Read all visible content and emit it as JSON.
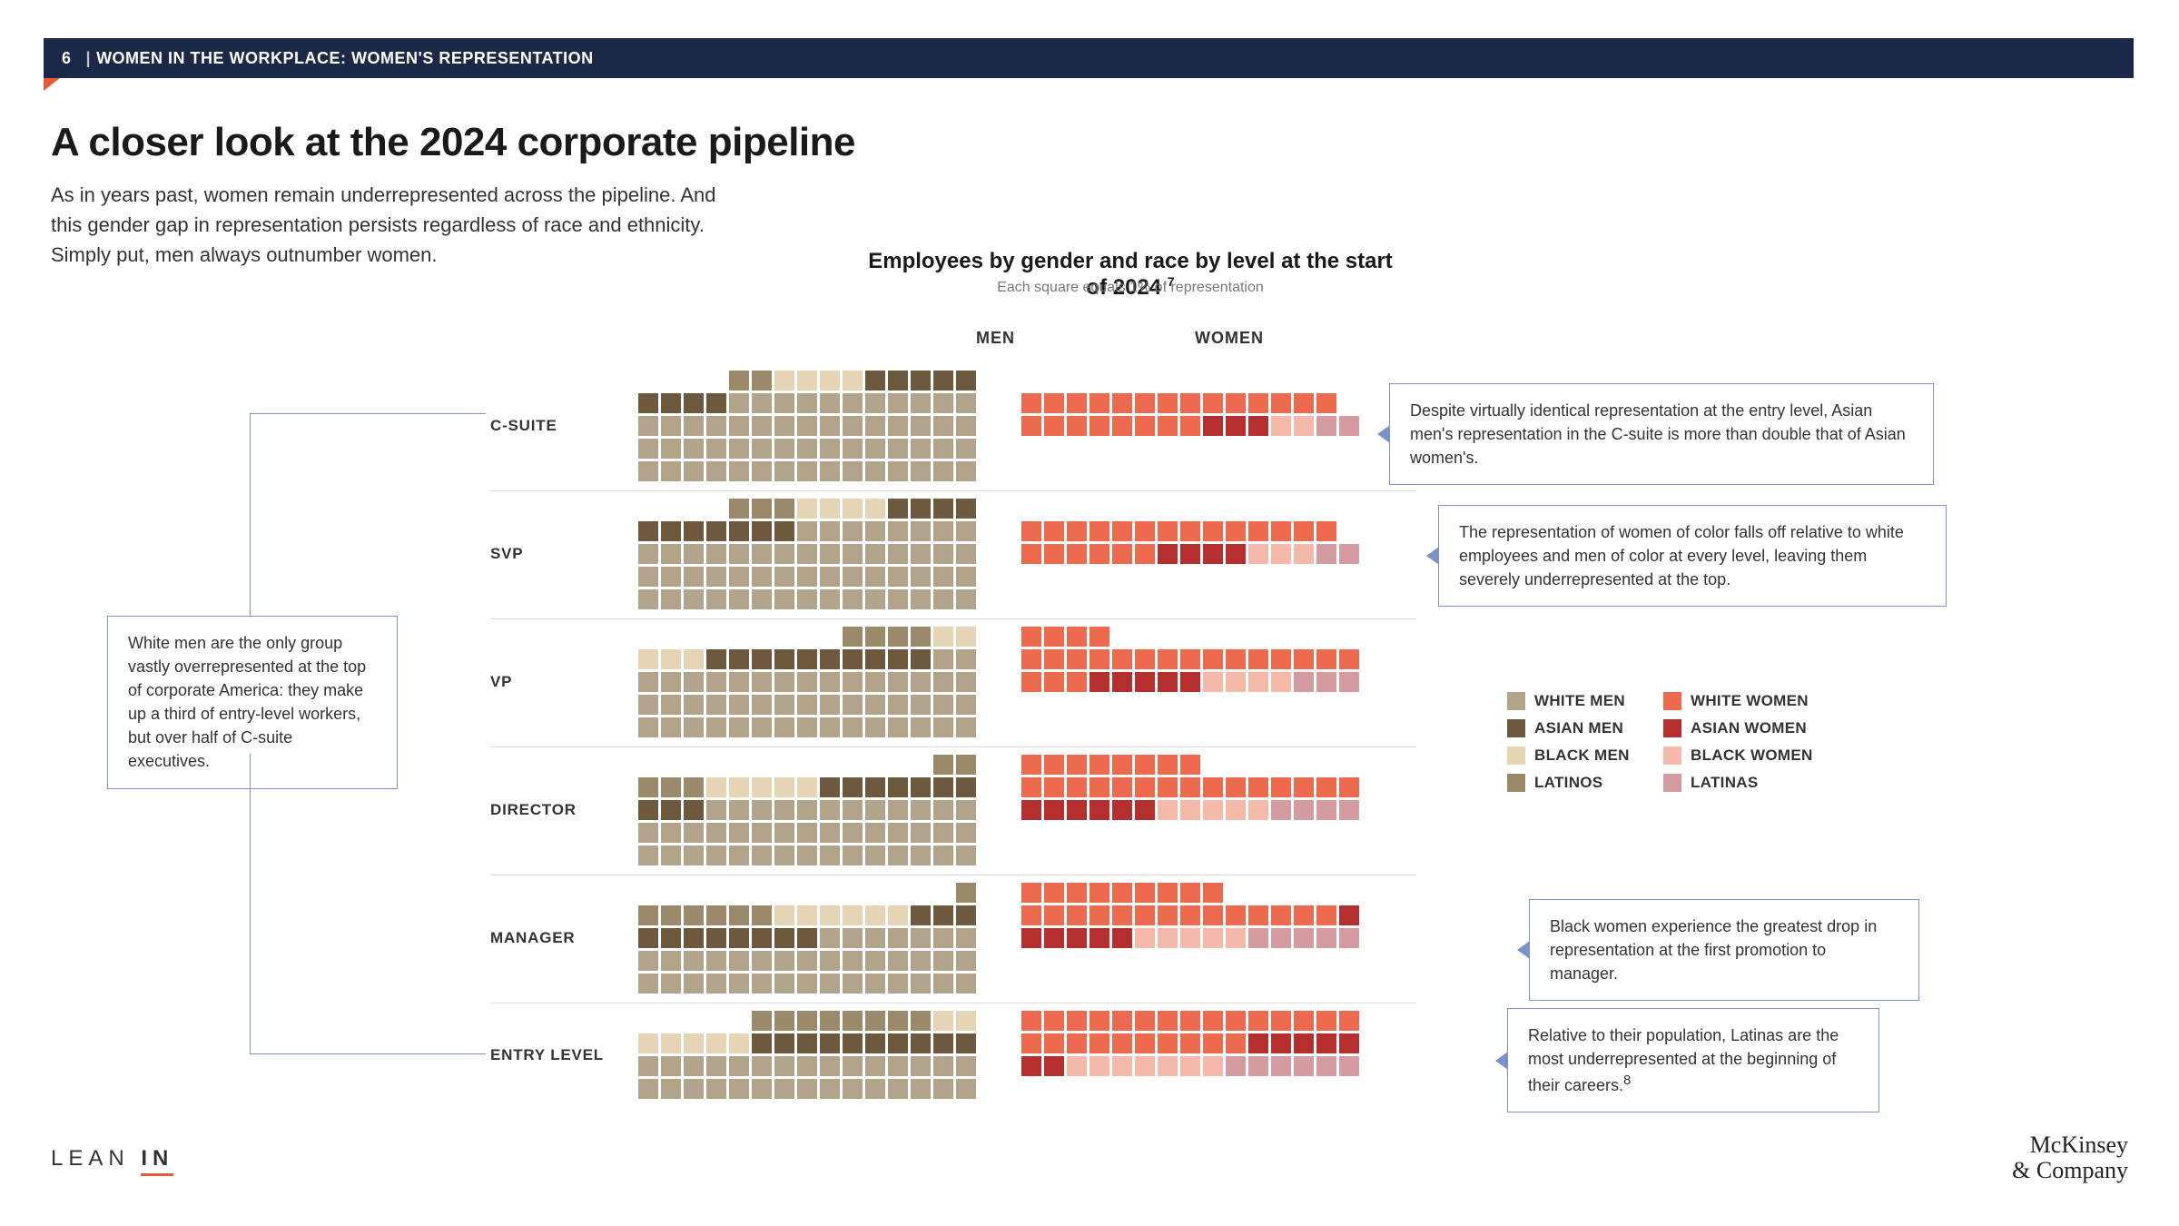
{
  "banner": {
    "page": "6",
    "title": "WOMEN IN THE WORKPLACE: WOMEN'S REPRESENTATION"
  },
  "title": "A closer look at the 2024 corporate pipeline",
  "intro": "As in years past, women remain underrepresented across the pipeline. And this gender gap in representation persists regardless of race and ethnicity. Simply put, men always outnumber women.",
  "chart": {
    "title": "Employees by gender and race by level at the start of 2024",
    "title_sup": "7",
    "subtitle": "Each square equals 1% of representation",
    "col_men": "MEN",
    "col_women": "WOMEN",
    "colors": {
      "white_men": "#b1a48b",
      "asian_men": "#6d5a3e",
      "black_men": "#e6d5b5",
      "latinos": "#9a8a6a",
      "white_women": "#ed6a4f",
      "asian_women": "#b52f2f",
      "black_women": "#f5b9aa",
      "latinas": "#d49ca0"
    },
    "legend": [
      {
        "key": "white_men",
        "label": "WHITE MEN"
      },
      {
        "key": "white_women",
        "label": "WHITE WOMEN"
      },
      {
        "key": "asian_men",
        "label": "ASIAN MEN"
      },
      {
        "key": "asian_women",
        "label": "ASIAN WOMEN"
      },
      {
        "key": "black_men",
        "label": "BLACK MEN"
      },
      {
        "key": "black_women",
        "label": "BLACK WOMEN"
      },
      {
        "key": "latinos",
        "label": "LATINOS"
      },
      {
        "key": "latinas",
        "label": "LATINAS"
      }
    ],
    "levels": [
      {
        "label": "C-SUITE",
        "men": {
          "white_men": 56,
          "asian_men": 9,
          "black_men": 4,
          "latinos": 2
        },
        "women": {
          "white_women": 22,
          "asian_women": 3,
          "black_women": 2,
          "latinas": 2
        }
      },
      {
        "label": "SVP",
        "men": {
          "white_men": 53,
          "asian_men": 11,
          "black_men": 4,
          "latinos": 3
        },
        "women": {
          "white_women": 20,
          "asian_women": 4,
          "black_women": 3,
          "latinas": 2
        }
      },
      {
        "label": "VP",
        "men": {
          "white_men": 47,
          "asian_men": 10,
          "black_men": 5,
          "latinos": 4
        },
        "women": {
          "white_women": 22,
          "asian_women": 5,
          "black_women": 4,
          "latinas": 3
        }
      },
      {
        "label": "DIRECTOR",
        "men": {
          "white_men": 42,
          "asian_men": 10,
          "black_men": 5,
          "latinos": 5
        },
        "women": {
          "white_women": 23,
          "asian_women": 6,
          "black_women": 5,
          "latinas": 4
        }
      },
      {
        "label": "MANAGER",
        "men": {
          "white_men": 37,
          "asian_men": 11,
          "black_men": 6,
          "latinos": 7
        },
        "women": {
          "white_women": 23,
          "asian_women": 6,
          "black_women": 5,
          "latinas": 5
        }
      },
      {
        "label": "ENTRY LEVEL",
        "men": {
          "white_men": 30,
          "asian_men": 10,
          "black_men": 7,
          "latinos": 8
        },
        "women": {
          "white_women": 25,
          "asian_women": 7,
          "black_women": 7,
          "latinas": 6
        }
      }
    ]
  },
  "callouts": {
    "left": "White men are the only group vastly overrepresented at the top of corporate America: they make up a third of entry-level workers, but over half of C-suite executives.",
    "r1": "Despite virtually identical representation at the entry level, Asian men's representation in the C-suite is more than double that of Asian women's.",
    "r2": "The representation of women of color falls off relative to white employees and men of color at every level, leaving them severely underrepresented at the top.",
    "r3": "Black women experience the greatest drop in representation at the first promotion to manager.",
    "r4": "Relative to their population, Latinas are the most underrepresented at the beginning of their careers."
  },
  "footnote_sup": "8",
  "logos": {
    "leanin_a": "LEAN",
    "leanin_b": "IN",
    "mckinsey_a": "McKinsey",
    "mckinsey_b": "& Company"
  }
}
